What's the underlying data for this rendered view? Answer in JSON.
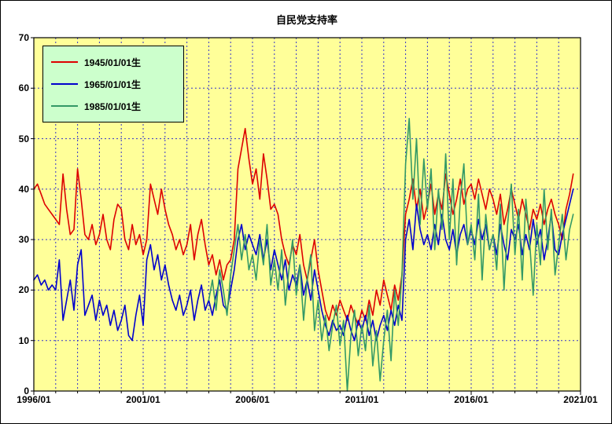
{
  "title": "自民党支持率",
  "colors": {
    "plot_bg": "#ffff99",
    "legend_bg": "#ccffcc",
    "grid": "#3333cc",
    "axis": "#000000"
  },
  "axes": {
    "y_ticks": [
      "0",
      "10",
      "20",
      "30",
      "40",
      "50",
      "60",
      "70"
    ],
    "x_tick_labels": [
      "1996/01",
      "2001/01",
      "2006/01",
      "2011/01",
      "2016/01",
      "2021/01"
    ],
    "x_tick_years": [
      1996,
      2001,
      2006,
      2011,
      2016,
      2021
    ]
  },
  "chart_data": {
    "type": "line",
    "title": "自民党支持率",
    "xlabel": "",
    "ylabel": "",
    "x_axis_range": [
      1996,
      2021
    ],
    "ylim": [
      0,
      70
    ],
    "grid": true,
    "legend_position": "top-left-inside",
    "x_start_year": 1996,
    "x_step_months": 2,
    "series": [
      {
        "name": "1945/01/01生",
        "color": "#dd0000",
        "values": [
          40,
          41,
          39,
          37,
          36,
          35,
          34,
          33,
          43,
          36,
          31,
          32,
          44,
          38,
          31,
          30,
          33,
          29,
          31,
          35,
          30,
          28,
          34,
          37,
          36,
          30,
          28,
          33,
          29,
          31,
          27,
          30,
          41,
          38,
          35,
          40,
          36,
          33,
          31,
          28,
          30,
          27,
          29,
          33,
          26,
          31,
          34,
          29,
          25,
          27,
          23,
          26,
          22,
          25,
          26,
          30,
          44,
          48,
          52,
          46,
          41,
          44,
          38,
          47,
          42,
          36,
          37,
          35,
          30,
          27,
          25,
          29,
          27,
          31,
          25,
          22,
          26,
          30,
          24,
          20,
          16,
          14,
          17,
          15,
          18,
          16,
          14,
          17,
          15,
          13,
          16,
          14,
          18,
          15,
          20,
          17,
          22,
          19,
          16,
          21,
          18,
          23,
          35,
          38,
          42,
          36,
          40,
          34,
          37,
          41,
          35,
          39,
          36,
          43,
          39,
          35,
          38,
          42,
          37,
          40,
          41,
          38,
          42,
          39,
          36,
          40,
          38,
          35,
          39,
          33,
          36,
          40,
          37,
          34,
          38,
          35,
          32,
          36,
          34,
          37,
          33,
          36,
          38,
          35,
          33,
          30,
          36,
          39,
          43
        ]
      },
      {
        "name": "1965/01/01生",
        "color": "#0000cc",
        "values": [
          22,
          23,
          21,
          22,
          20,
          21,
          20,
          26,
          14,
          18,
          22,
          16,
          25,
          28,
          15,
          17,
          19,
          14,
          18,
          15,
          17,
          13,
          16,
          12,
          14,
          17,
          11,
          10,
          15,
          19,
          13,
          26,
          29,
          24,
          27,
          22,
          25,
          21,
          18,
          16,
          19,
          15,
          17,
          20,
          14,
          18,
          21,
          16,
          18,
          15,
          19,
          22,
          17,
          16,
          20,
          24,
          30,
          33,
          28,
          31,
          29,
          27,
          31,
          26,
          30,
          24,
          28,
          25,
          22,
          26,
          20,
          23,
          21,
          25,
          19,
          22,
          18,
          24,
          20,
          16,
          13,
          11,
          14,
          12,
          13,
          11,
          15,
          12,
          10,
          14,
          12,
          15,
          11,
          14,
          10,
          13,
          15,
          12,
          16,
          13,
          17,
          14,
          30,
          34,
          28,
          37,
          32,
          29,
          31,
          28,
          33,
          29,
          35,
          30,
          28,
          32,
          27,
          31,
          33,
          29,
          32,
          29,
          34,
          30,
          33,
          28,
          31,
          27,
          33,
          29,
          26,
          32,
          30,
          33,
          27,
          31,
          28,
          34,
          29,
          32,
          26,
          30,
          35,
          28,
          27,
          31,
          34,
          37,
          40
        ]
      },
      {
        "name": "1985/01/01生",
        "color": "#339966",
        "values": [
          null,
          null,
          null,
          null,
          null,
          null,
          null,
          null,
          null,
          null,
          null,
          null,
          null,
          null,
          null,
          null,
          null,
          null,
          null,
          null,
          null,
          null,
          null,
          null,
          null,
          null,
          null,
          null,
          null,
          null,
          null,
          null,
          null,
          null,
          null,
          null,
          null,
          null,
          null,
          null,
          null,
          null,
          null,
          null,
          null,
          null,
          null,
          null,
          18,
          22,
          16,
          24,
          20,
          15,
          23,
          28,
          33,
          26,
          31,
          24,
          27,
          22,
          30,
          25,
          33,
          21,
          26,
          20,
          28,
          17,
          24,
          30,
          19,
          25,
          14,
          22,
          27,
          12,
          18,
          10,
          15,
          8,
          13,
          17,
          9,
          14,
          0,
          11,
          16,
          7,
          13,
          8,
          17,
          5,
          12,
          2,
          10,
          16,
          6,
          20,
          13,
          23,
          45,
          54,
          38,
          50,
          33,
          46,
          36,
          44,
          28,
          40,
          32,
          47,
          30,
          42,
          25,
          38,
          45,
          29,
          33,
          26,
          39,
          22,
          35,
          28,
          31,
          24,
          37,
          20,
          33,
          41,
          27,
          36,
          22,
          38,
          30,
          19,
          33,
          25,
          40,
          28,
          36,
          23,
          29,
          35,
          26,
          32,
          35
        ]
      }
    ]
  }
}
